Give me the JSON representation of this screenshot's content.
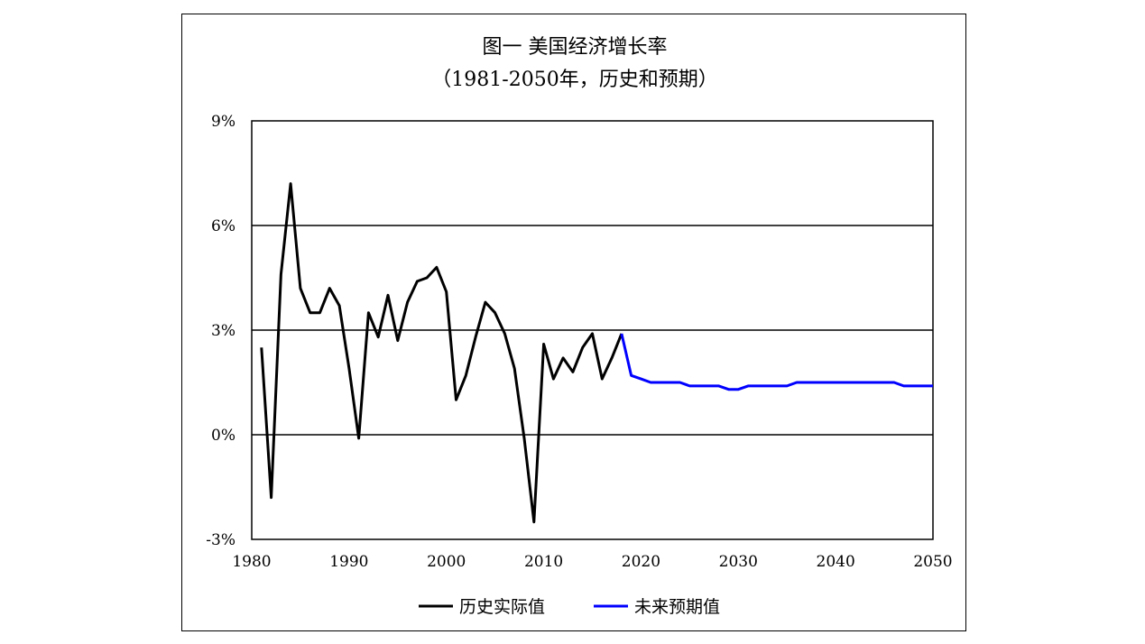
{
  "chart_data": {
    "type": "line",
    "title": "图一  美国经济增长率",
    "subtitle": "（1981-2050年，历史和预期）",
    "xlabel": "",
    "ylabel": "",
    "xlim": [
      1980,
      2050
    ],
    "ylim": [
      -3,
      9
    ],
    "x_ticks": [
      1980,
      1990,
      2000,
      2010,
      2020,
      2030,
      2040,
      2050
    ],
    "x_tick_labels": [
      "1980",
      "1990",
      "2000",
      "2010",
      "2020",
      "2030",
      "2040",
      "2050"
    ],
    "y_ticks": [
      -3,
      0,
      3,
      6,
      9
    ],
    "y_tick_labels": [
      "-3%",
      "0%",
      "3%",
      "6%",
      "9%"
    ],
    "grid": "horizontal",
    "legend_position": "bottom",
    "series": [
      {
        "name": "历史实际值",
        "color": "#000000",
        "x": [
          1981,
          1982,
          1983,
          1984,
          1985,
          1986,
          1987,
          1988,
          1989,
          1990,
          1991,
          1992,
          1993,
          1994,
          1995,
          1996,
          1997,
          1998,
          1999,
          2000,
          2001,
          2002,
          2003,
          2004,
          2005,
          2006,
          2007,
          2008,
          2009,
          2010,
          2011,
          2012,
          2013,
          2014,
          2015,
          2016,
          2017,
          2018
        ],
        "values": [
          2.5,
          -1.8,
          4.6,
          7.2,
          4.2,
          3.5,
          3.5,
          4.2,
          3.7,
          1.9,
          -0.1,
          3.5,
          2.8,
          4.0,
          2.7,
          3.8,
          4.4,
          4.5,
          4.8,
          4.1,
          1.0,
          1.7,
          2.8,
          3.8,
          3.5,
          2.9,
          1.9,
          -0.1,
          -2.5,
          2.6,
          1.6,
          2.2,
          1.8,
          2.5,
          2.9,
          1.6,
          2.2,
          2.9
        ]
      },
      {
        "name": "未来预期值",
        "color": "#0000ff",
        "x": [
          2018,
          2019,
          2020,
          2021,
          2022,
          2023,
          2024,
          2025,
          2026,
          2027,
          2028,
          2029,
          2030,
          2031,
          2032,
          2033,
          2034,
          2035,
          2036,
          2037,
          2038,
          2039,
          2040,
          2041,
          2042,
          2043,
          2044,
          2045,
          2046,
          2047,
          2048,
          2049,
          2050
        ],
        "values": [
          2.9,
          1.7,
          1.6,
          1.5,
          1.5,
          1.5,
          1.5,
          1.4,
          1.4,
          1.4,
          1.4,
          1.3,
          1.3,
          1.4,
          1.4,
          1.4,
          1.4,
          1.4,
          1.5,
          1.5,
          1.5,
          1.5,
          1.5,
          1.5,
          1.5,
          1.5,
          1.5,
          1.5,
          1.5,
          1.4,
          1.4,
          1.4,
          1.4
        ]
      }
    ]
  }
}
